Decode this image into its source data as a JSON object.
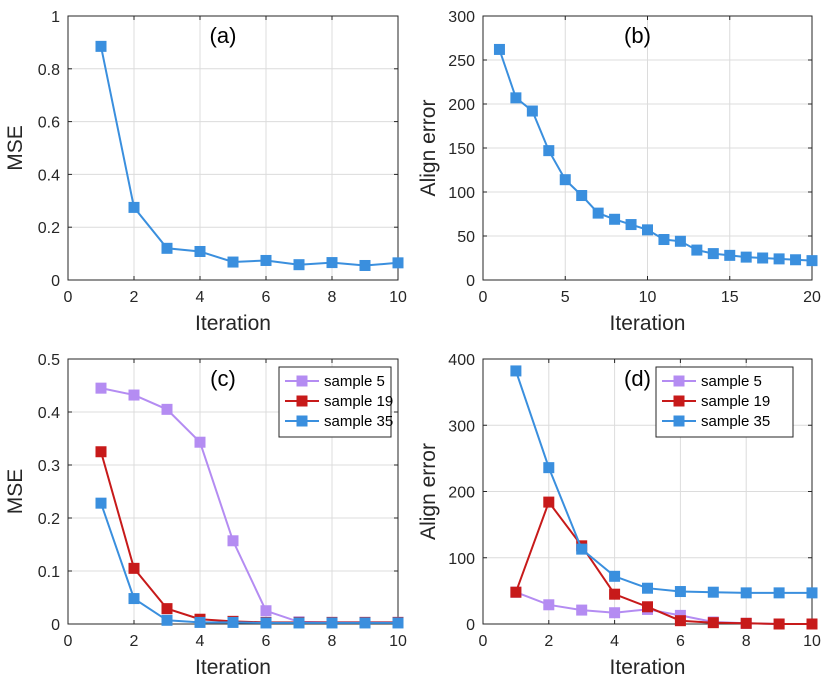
{
  "chart_data": [
    {
      "type": "line",
      "panel_label": "(a)",
      "xlabel": "Iteration",
      "ylabel": "MSE",
      "xlim": [
        0,
        10
      ],
      "ylim": [
        0,
        1
      ],
      "xticks": [
        0,
        2,
        4,
        6,
        8,
        10
      ],
      "yticks": [
        0,
        0.2,
        0.4,
        0.6,
        0.8,
        1
      ],
      "ytick_labels": [
        "0",
        "0.2",
        "0.4",
        "0.6",
        "0.8",
        "1"
      ],
      "xtick_labels": [
        "0",
        "2",
        "4",
        "6",
        "8",
        "10"
      ],
      "grid": true,
      "legend": null,
      "series": [
        {
          "name": "MSE",
          "color": "#3a8fde",
          "x": [
            1,
            2,
            3,
            4,
            5,
            6,
            7,
            8,
            9,
            10
          ],
          "values": [
            0.885,
            0.275,
            0.12,
            0.108,
            0.068,
            0.074,
            0.058,
            0.066,
            0.055,
            0.065
          ]
        }
      ]
    },
    {
      "type": "line",
      "panel_label": "(b)",
      "xlabel": "Iteration",
      "ylabel": "Align error",
      "xlim": [
        0,
        20
      ],
      "ylim": [
        0,
        300
      ],
      "xticks": [
        0,
        5,
        10,
        15,
        20
      ],
      "yticks": [
        0,
        50,
        100,
        150,
        200,
        250,
        300
      ],
      "ytick_labels": [
        "0",
        "50",
        "100",
        "150",
        "200",
        "250",
        "300"
      ],
      "xtick_labels": [
        "0",
        "5",
        "10",
        "15",
        "20"
      ],
      "grid": true,
      "legend": null,
      "series": [
        {
          "name": "Align error",
          "color": "#3a8fde",
          "x": [
            1,
            2,
            3,
            4,
            5,
            6,
            7,
            8,
            9,
            10,
            11,
            12,
            13,
            14,
            15,
            16,
            17,
            18,
            19,
            20
          ],
          "values": [
            262,
            207,
            192,
            147,
            114,
            96,
            76,
            69,
            63,
            57,
            46,
            44,
            34,
            30,
            28,
            26,
            25,
            24,
            23,
            22
          ]
        }
      ]
    },
    {
      "type": "line",
      "panel_label": "(c)",
      "xlabel": "Iteration",
      "ylabel": "MSE",
      "xlim": [
        0,
        10
      ],
      "ylim": [
        0,
        0.5
      ],
      "xticks": [
        0,
        2,
        4,
        6,
        8,
        10
      ],
      "yticks": [
        0,
        0.1,
        0.2,
        0.3,
        0.4,
        0.5
      ],
      "ytick_labels": [
        "0",
        "0.1",
        "0.2",
        "0.3",
        "0.4",
        "0.5"
      ],
      "xtick_labels": [
        "0",
        "2",
        "4",
        "6",
        "8",
        "10"
      ],
      "grid": true,
      "legend": "top-right",
      "series": [
        {
          "name": "sample 5",
          "color": "#b48cf2",
          "x": [
            1,
            2,
            3,
            4,
            5,
            6,
            7,
            8,
            9,
            10
          ],
          "values": [
            0.445,
            0.432,
            0.405,
            0.343,
            0.157,
            0.025,
            0.004,
            0.003,
            0.003,
            0.003
          ]
        },
        {
          "name": "sample 19",
          "color": "#c71a1a",
          "x": [
            1,
            2,
            3,
            4,
            5,
            6,
            7,
            8,
            9,
            10
          ],
          "values": [
            0.325,
            0.105,
            0.029,
            0.009,
            0.005,
            0.003,
            0.003,
            0.003,
            0.003,
            0.003
          ]
        },
        {
          "name": "sample 35",
          "color": "#3a8fde",
          "x": [
            1,
            2,
            3,
            4,
            5,
            6,
            7,
            8,
            9,
            10
          ],
          "values": [
            0.228,
            0.048,
            0.007,
            0.003,
            0.003,
            0.002,
            0.002,
            0.002,
            0.002,
            0.002
          ]
        }
      ]
    },
    {
      "type": "line",
      "panel_label": "(d)",
      "xlabel": "Iteration",
      "ylabel": "Align error",
      "xlim": [
        0,
        10
      ],
      "ylim": [
        0,
        400
      ],
      "xticks": [
        0,
        2,
        4,
        6,
        8,
        10
      ],
      "yticks": [
        0,
        100,
        200,
        300,
        400
      ],
      "ytick_labels": [
        "0",
        "100",
        "200",
        "300",
        "400"
      ],
      "xtick_labels": [
        "0",
        "2",
        "4",
        "6",
        "8",
        "10"
      ],
      "grid": true,
      "legend": "top-right",
      "series": [
        {
          "name": "sample 5",
          "color": "#b48cf2",
          "x": [
            1,
            2,
            3,
            4,
            5,
            6,
            7,
            8,
            9,
            10
          ],
          "values": [
            48,
            29,
            21,
            17,
            22,
            13,
            3,
            1,
            0,
            0
          ]
        },
        {
          "name": "sample 19",
          "color": "#c71a1a",
          "x": [
            1,
            2,
            3,
            4,
            5,
            6,
            7,
            8,
            9,
            10
          ],
          "values": [
            48,
            184,
            118,
            45,
            26,
            5,
            2,
            1,
            0,
            0
          ]
        },
        {
          "name": "sample 35",
          "color": "#3a8fde",
          "x": [
            1,
            2,
            3,
            4,
            5,
            6,
            7,
            8,
            9,
            10
          ],
          "values": [
            382,
            236,
            113,
            72,
            54,
            49,
            48,
            47,
            47,
            47
          ]
        }
      ]
    }
  ]
}
